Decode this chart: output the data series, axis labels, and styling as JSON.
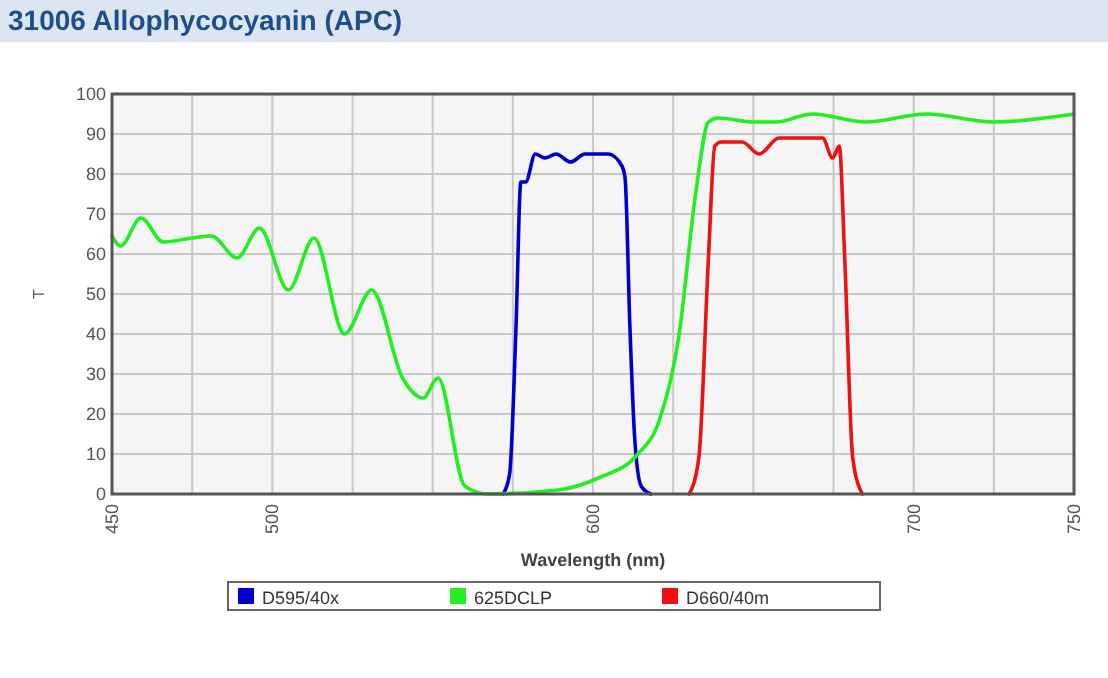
{
  "chart_data": {
    "type": "line",
    "title": "31006 Allophycocyanin (APC)",
    "xlabel": "Wavelength (nm)",
    "ylabel": "T",
    "xlim": [
      450,
      750
    ],
    "xticks": [
      450,
      {
        "value": 475,
        "label": null
      },
      500,
      {
        "value": 525,
        "label": null
      },
      {
        "value": 550,
        "label": null
      },
      {
        "value": 575,
        "label": null
      },
      600,
      {
        "value": 625,
        "label": null
      },
      {
        "value": 650,
        "label": null
      },
      {
        "value": 675,
        "label": null
      },
      700,
      {
        "value": 725,
        "label": null
      },
      750
    ],
    "ylim": [
      0,
      100
    ],
    "yticks": [
      0,
      10,
      20,
      30,
      40,
      50,
      60,
      70,
      80,
      90,
      100
    ],
    "grid": true,
    "legend": "bottom",
    "marker": "none",
    "line_style": "solid",
    "series": [
      {
        "name": "D595/40x",
        "color": "#0000cc",
        "x": [
          572,
          574,
          576,
          577.5,
          579,
          582,
          585,
          588.5,
          593,
          597.5,
          604.8,
          609,
          610,
          611.5,
          613,
          615,
          618
        ],
        "values": [
          0,
          5,
          42,
          78,
          78,
          85,
          84,
          85,
          83,
          85,
          85,
          82,
          79,
          42,
          14,
          2,
          0
        ]
      },
      {
        "name": "625DCLP",
        "color": "#22ee22",
        "x": [
          450,
          452.7,
          459,
          466,
          475,
          481,
          489,
          496,
          505,
          513,
          522.5,
          531,
          540.6,
          547,
          551.7,
          560,
          567,
          589,
          601.7,
          614,
          620.5,
          626.7,
          632,
          636,
          639,
          650,
          657,
          668.5,
          685,
          704,
          725,
          750
        ],
        "values": [
          64.5,
          62,
          69,
          63,
          64,
          64.5,
          59,
          66.5,
          51,
          64,
          40,
          51,
          29,
          24,
          29,
          2,
          0,
          1,
          4,
          10,
          18,
          39,
          75,
          93,
          94,
          93,
          93,
          95,
          93,
          95,
          93,
          95
        ]
      },
      {
        "name": "D660/40m",
        "color": "#ee1111",
        "x": [
          630,
          633,
          636,
          638,
          640,
          646.5,
          651.8,
          658,
          671.6,
          674.7,
          676.8,
          678.5,
          681,
          684
        ],
        "values": [
          0,
          9,
          59,
          87,
          88,
          88,
          85,
          89,
          89,
          84,
          87,
          59,
          9,
          0
        ]
      }
    ]
  }
}
